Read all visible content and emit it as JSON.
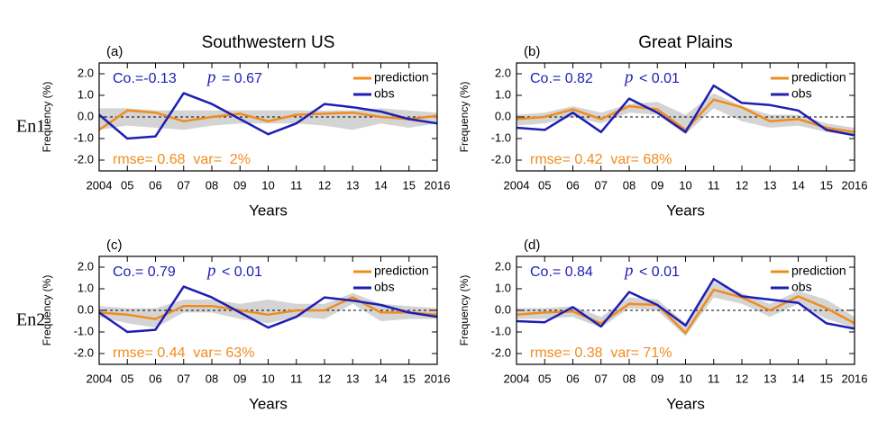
{
  "chart_data": [
    {
      "type": "line",
      "panel_label": "(a)",
      "title": "Southwestern US",
      "row_label": "En1",
      "ylabel": "Frequency (%)",
      "xlabel": "Years",
      "x": [
        2004,
        2005,
        2006,
        2007,
        2008,
        2009,
        2010,
        2011,
        2012,
        2013,
        2014,
        2015,
        2016
      ],
      "xlim": [
        2004,
        2016
      ],
      "xticks": [
        2004,
        {
          "value": 2005,
          "label": "05"
        },
        {
          "value": 2006,
          "label": "06"
        },
        {
          "value": 2007,
          "label": "07"
        },
        {
          "value": 2008,
          "label": "08"
        },
        {
          "value": 2009,
          "label": "09"
        },
        {
          "value": 2010,
          "label": "10"
        },
        {
          "value": 2011,
          "label": "11"
        },
        {
          "value": 2012,
          "label": "12"
        },
        {
          "value": 2013,
          "label": "13"
        },
        {
          "value": 2014,
          "label": "14"
        },
        {
          "value": 2015,
          "label": "15"
        },
        2016
      ],
      "ylim": [
        -2.5,
        2.5
      ],
      "yticks": [
        {
          "value": 2,
          "label": "2.0"
        },
        {
          "value": 1,
          "label": "1.0"
        },
        {
          "value": 0,
          "label": "0.0"
        },
        {
          "value": -1,
          "label": "-1.0"
        },
        {
          "value": -2,
          "label": "-2.0"
        }
      ],
      "hline": 0,
      "legend": "upper right",
      "band": {
        "color": "#d4d4d4",
        "upper": [
          0.4,
          0.4,
          0.3,
          0.3,
          0.3,
          0.3,
          0.3,
          0.3,
          0.3,
          0.3,
          0.4,
          0.3,
          0.2
        ],
        "lower": [
          -0.6,
          -0.4,
          -0.5,
          -0.6,
          -0.4,
          -0.3,
          -0.3,
          -0.3,
          -0.4,
          -0.6,
          -0.3,
          -0.5,
          -0.3
        ]
      },
      "series": [
        {
          "name": "prediction",
          "color": "#f08c1e",
          "values": [
            -0.6,
            0.3,
            0.2,
            -0.2,
            0.0,
            0.15,
            -0.2,
            0.1,
            0.15,
            0.2,
            0.0,
            -0.1,
            0.05
          ]
        },
        {
          "name": "obs",
          "color": "#1e1eb4",
          "values": [
            0.1,
            -1.0,
            -0.9,
            1.1,
            0.6,
            -0.1,
            -0.8,
            -0.3,
            0.6,
            0.45,
            0.25,
            -0.1,
            -0.3
          ]
        }
      ],
      "annotations": {
        "corr": "Co.=-0.13",
        "p_symbol": "p",
        "p_value": "= 0.67",
        "skill": "rmse= 0.68  var=  2%"
      }
    },
    {
      "type": "line",
      "panel_label": "(b)",
      "title": "Great Plains",
      "ylabel": "Frequency (%)",
      "xlabel": "Years",
      "x": [
        2004,
        2005,
        2006,
        2007,
        2008,
        2009,
        2010,
        2011,
        2012,
        2013,
        2014,
        2015,
        2016
      ],
      "xlim": [
        2004,
        2016
      ],
      "xticks": [
        2004,
        {
          "value": 2005,
          "label": "05"
        },
        {
          "value": 2006,
          "label": "06"
        },
        {
          "value": 2007,
          "label": "07"
        },
        {
          "value": 2008,
          "label": "08"
        },
        {
          "value": 2009,
          "label": "09"
        },
        {
          "value": 2010,
          "label": "10"
        },
        {
          "value": 2011,
          "label": "11"
        },
        {
          "value": 2012,
          "label": "12"
        },
        {
          "value": 2013,
          "label": "13"
        },
        {
          "value": 2014,
          "label": "14"
        },
        {
          "value": 2015,
          "label": "15"
        },
        2016
      ],
      "ylim": [
        -2.5,
        2.5
      ],
      "yticks": [
        {
          "value": 2,
          "label": "2.0"
        },
        {
          "value": 1,
          "label": "1.0"
        },
        {
          "value": 0,
          "label": "0.0"
        },
        {
          "value": -1,
          "label": "-1.0"
        },
        {
          "value": -2,
          "label": "-2.0"
        }
      ],
      "hline": 0,
      "legend": "upper right",
      "band": {
        "color": "#d4d4d4",
        "upper": [
          0.1,
          0.2,
          0.5,
          0.2,
          0.6,
          0.7,
          0.1,
          1.1,
          0.5,
          0.1,
          0.1,
          -0.3,
          -0.5
        ],
        "lower": [
          -0.4,
          -0.3,
          0.0,
          -0.3,
          0.2,
          0.1,
          -0.8,
          0.4,
          -0.2,
          -0.5,
          -0.4,
          -0.7,
          -0.9
        ]
      },
      "series": [
        {
          "name": "prediction",
          "color": "#f08c1e",
          "values": [
            -0.1,
            0.0,
            0.35,
            -0.1,
            0.5,
            0.35,
            -0.6,
            0.8,
            0.45,
            -0.2,
            -0.1,
            -0.5,
            -0.7
          ]
        },
        {
          "name": "obs",
          "color": "#1e1eb4",
          "values": [
            -0.5,
            -0.6,
            0.2,
            -0.7,
            0.85,
            0.2,
            -0.7,
            1.45,
            0.65,
            0.55,
            0.3,
            -0.6,
            -0.85
          ]
        }
      ],
      "annotations": {
        "corr": "Co.= 0.82",
        "p_symbol": "p",
        "p_value": "< 0.01",
        "skill": "rmse= 0.42  var= 68%"
      }
    },
    {
      "type": "line",
      "panel_label": "(c)",
      "row_label": "En2",
      "ylabel": "Frequency (%)",
      "xlabel": "Years",
      "x": [
        2004,
        2005,
        2006,
        2007,
        2008,
        2009,
        2010,
        2011,
        2012,
        2013,
        2014,
        2015,
        2016
      ],
      "xlim": [
        2004,
        2016
      ],
      "xticks": [
        2004,
        {
          "value": 2005,
          "label": "05"
        },
        {
          "value": 2006,
          "label": "06"
        },
        {
          "value": 2007,
          "label": "07"
        },
        {
          "value": 2008,
          "label": "08"
        },
        {
          "value": 2009,
          "label": "09"
        },
        {
          "value": 2010,
          "label": "10"
        },
        {
          "value": 2011,
          "label": "11"
        },
        {
          "value": 2012,
          "label": "12"
        },
        {
          "value": 2013,
          "label": "13"
        },
        {
          "value": 2014,
          "label": "14"
        },
        {
          "value": 2015,
          "label": "15"
        },
        2016
      ],
      "ylim": [
        -2.5,
        2.5
      ],
      "yticks": [
        {
          "value": 2,
          "label": "2.0"
        },
        {
          "value": 1,
          "label": "1.0"
        },
        {
          "value": 0,
          "label": "0.0"
        },
        {
          "value": -1,
          "label": "-1.0"
        },
        {
          "value": -2,
          "label": "-2.0"
        }
      ],
      "hline": 0,
      "legend": "upper right",
      "band": {
        "color": "#d4d4d4",
        "upper": [
          0.2,
          0.1,
          0.1,
          0.5,
          0.5,
          0.3,
          0.5,
          0.3,
          0.3,
          0.8,
          0.3,
          0.2,
          0.1
        ],
        "lower": [
          -0.3,
          -0.6,
          -0.8,
          -0.1,
          -0.1,
          -0.4,
          -0.6,
          -0.3,
          -0.4,
          0.3,
          -0.5,
          -0.4,
          -0.4
        ]
      },
      "series": [
        {
          "name": "prediction",
          "color": "#f08c1e",
          "values": [
            -0.1,
            -0.2,
            -0.4,
            0.2,
            0.2,
            0.0,
            -0.2,
            0.0,
            0.0,
            0.6,
            -0.1,
            -0.1,
            -0.2
          ]
        },
        {
          "name": "obs",
          "color": "#1e1eb4",
          "values": [
            -0.1,
            -1.0,
            -0.9,
            1.1,
            0.6,
            -0.1,
            -0.8,
            -0.3,
            0.6,
            0.45,
            0.25,
            -0.1,
            -0.3
          ]
        }
      ],
      "annotations": {
        "corr": "Co.= 0.79",
        "p_symbol": "p",
        "p_value": "< 0.01",
        "skill": "rmse= 0.44  var= 63%"
      }
    },
    {
      "type": "line",
      "panel_label": "(d)",
      "ylabel": "Frequency (%)",
      "xlabel": "Years",
      "x": [
        2004,
        2005,
        2006,
        2007,
        2008,
        2009,
        2010,
        2011,
        2012,
        2013,
        2014,
        2015,
        2016
      ],
      "xlim": [
        2004,
        2016
      ],
      "xticks": [
        2004,
        {
          "value": 2005,
          "label": "05"
        },
        {
          "value": 2006,
          "label": "06"
        },
        {
          "value": 2007,
          "label": "07"
        },
        {
          "value": 2008,
          "label": "08"
        },
        {
          "value": 2009,
          "label": "09"
        },
        {
          "value": 2010,
          "label": "10"
        },
        {
          "value": 2011,
          "label": "11"
        },
        {
          "value": 2012,
          "label": "12"
        },
        {
          "value": 2013,
          "label": "13"
        },
        {
          "value": 2014,
          "label": "14"
        },
        {
          "value": 2015,
          "label": "15"
        },
        2016
      ],
      "ylim": [
        -2.5,
        2.5
      ],
      "yticks": [
        {
          "value": 2,
          "label": "2.0"
        },
        {
          "value": 1,
          "label": "1.0"
        },
        {
          "value": 0,
          "label": "0.0"
        },
        {
          "value": -1,
          "label": "-1.0"
        },
        {
          "value": -2,
          "label": "-2.0"
        }
      ],
      "hline": 0,
      "legend": "upper right",
      "band": {
        "color": "#d4d4d4",
        "upper": [
          0.1,
          0.1,
          0.2,
          -0.3,
          0.6,
          0.5,
          -0.6,
          1.3,
          0.8,
          0.3,
          0.9,
          0.5,
          -0.3
        ],
        "lower": [
          -0.4,
          -0.4,
          -0.3,
          -0.8,
          0.1,
          0.0,
          -1.2,
          0.6,
          0.3,
          -0.3,
          0.3,
          -0.4,
          -0.8
        ]
      },
      "series": [
        {
          "name": "prediction",
          "color": "#f08c1e",
          "values": [
            -0.2,
            -0.1,
            -0.05,
            -0.6,
            0.3,
            0.25,
            -1.05,
            0.95,
            0.6,
            0.0,
            0.65,
            0.1,
            -0.6
          ]
        },
        {
          "name": "obs",
          "color": "#1e1eb4",
          "values": [
            -0.5,
            -0.55,
            0.15,
            -0.75,
            0.85,
            0.25,
            -0.7,
            1.45,
            0.65,
            0.5,
            0.35,
            -0.6,
            -0.85
          ]
        }
      ],
      "annotations": {
        "corr": "Co.= 0.84",
        "p_symbol": "p",
        "p_value": "< 0.01",
        "skill": "rmse= 0.38  var= 71%"
      }
    }
  ]
}
